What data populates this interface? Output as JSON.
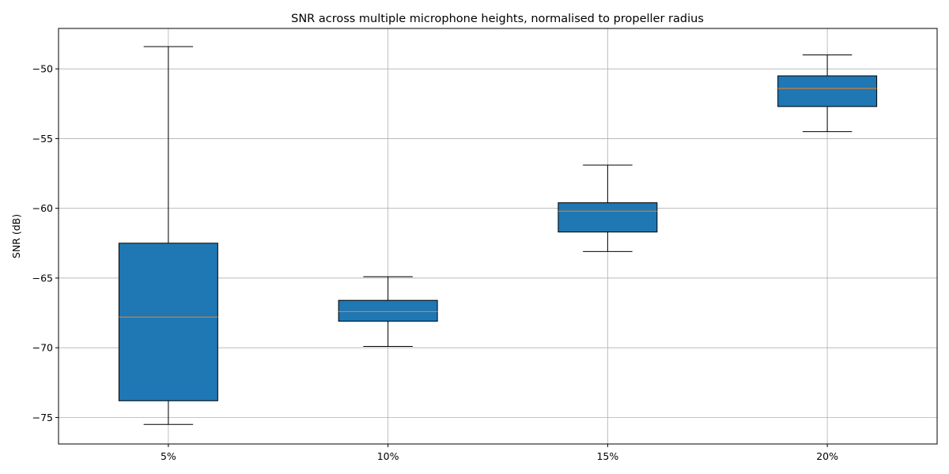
{
  "chart_data": {
    "type": "boxplot",
    "title": "SNR across multiple microphone heights, normalised to propeller radius",
    "xlabel": "",
    "ylabel": "SNR (dB)",
    "categories": [
      "5%",
      "10%",
      "15%",
      "20%"
    ],
    "boxes": [
      {
        "whisker_low": -75.5,
        "q1": -73.8,
        "median": -67.8,
        "q3": -62.5,
        "whisker_high": -48.4
      },
      {
        "whisker_low": -69.9,
        "q1": -68.1,
        "median": -67.4,
        "q3": -66.6,
        "whisker_high": -64.9
      },
      {
        "whisker_low": -63.1,
        "q1": -61.7,
        "median": -60.2,
        "q3": -59.6,
        "whisker_high": -56.9
      },
      {
        "whisker_low": -54.5,
        "q1": -52.7,
        "median": -51.4,
        "q3": -50.5,
        "whisker_high": -49.0
      }
    ],
    "yticks": [
      -75,
      -70,
      -65,
      -60,
      -55,
      -50
    ],
    "ytick_labels": [
      "−75",
      "−70",
      "−65",
      "−60",
      "−55",
      "−50"
    ],
    "ylim": [
      -76.9,
      -47.1
    ],
    "grid": true,
    "colors": {
      "box_fill": "#1f77b4",
      "median": "#ff7f0e",
      "whisker": "#000000",
      "grid": "#b0b0b0"
    }
  }
}
